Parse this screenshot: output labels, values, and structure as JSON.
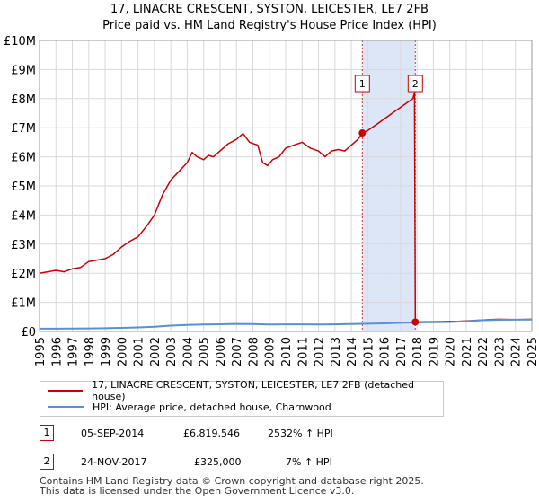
{
  "colors": {
    "price_paid": "#cc0000",
    "hpi": "#5b8fd6",
    "shade": "#dde6f7",
    "grid": "#d9d9d9",
    "axis": "#999999"
  },
  "chart_data": {
    "type": "line",
    "title": "17, LINACRE CRESCENT, SYSTON, LEICESTER, LE7 2FB",
    "subtitle": "Price paid vs. HM Land Registry's House Price Index (HPI)",
    "xlim": [
      1995,
      2025
    ],
    "ylim": [
      0,
      10000000
    ],
    "x_ticks": [
      "1995",
      "1996",
      "1997",
      "1998",
      "1999",
      "2000",
      "2001",
      "2002",
      "2003",
      "2004",
      "2005",
      "2006",
      "2007",
      "2008",
      "2009",
      "2010",
      "2011",
      "2012",
      "2013",
      "2014",
      "2015",
      "2016",
      "2017",
      "2018",
      "2019",
      "2020",
      "2021",
      "2022",
      "2023",
      "2024",
      "2025"
    ],
    "y_ticks": [
      {
        "value": 0,
        "label": "£0"
      },
      {
        "value": 1000000,
        "label": "£1M"
      },
      {
        "value": 2000000,
        "label": "£2M"
      },
      {
        "value": 3000000,
        "label": "£3M"
      },
      {
        "value": 4000000,
        "label": "£4M"
      },
      {
        "value": 5000000,
        "label": "£5M"
      },
      {
        "value": 6000000,
        "label": "£6M"
      },
      {
        "value": 7000000,
        "label": "£7M"
      },
      {
        "value": 8000000,
        "label": "£8M"
      },
      {
        "value": 9000000,
        "label": "£9M"
      },
      {
        "value": 10000000,
        "label": "£10M"
      }
    ],
    "grid": true,
    "shaded_range": [
      2014.67,
      2017.9
    ],
    "series": [
      {
        "name": "17, LINACRE CRESCENT, SYSTON, LEICESTER, LE7 2FB (detached house)",
        "color": "#cc0000",
        "x": [
          1995.0,
          1995.5,
          1996.0,
          1996.5,
          1997.0,
          1997.5,
          1998.0,
          1998.5,
          1999.0,
          1999.5,
          2000.0,
          2000.5,
          2001.0,
          2001.5,
          2002.0,
          2002.5,
          2003.0,
          2003.5,
          2004.0,
          2004.3,
          2004.6,
          2005.0,
          2005.3,
          2005.6,
          2006.0,
          2006.5,
          2007.0,
          2007.4,
          2007.8,
          2008.3,
          2008.6,
          2008.9,
          2009.2,
          2009.6,
          2010.0,
          2010.5,
          2011.0,
          2011.5,
          2012.0,
          2012.4,
          2012.8,
          2013.2,
          2013.6,
          2014.0,
          2014.4,
          2014.67,
          2015.0,
          2015.5,
          2016.0,
          2016.5,
          2017.0,
          2017.5,
          2017.75,
          2017.85,
          2017.9,
          2018.0,
          2018.5,
          2019.0,
          2019.5,
          2020.0,
          2020.5,
          2021.0,
          2021.5,
          2022.0,
          2022.5,
          2023.0,
          2023.5,
          2024.0,
          2024.5,
          2025.0
        ],
        "values": [
          2000000,
          2050000,
          2100000,
          2050000,
          2150000,
          2200000,
          2400000,
          2450000,
          2500000,
          2650000,
          2900000,
          3100000,
          3250000,
          3600000,
          4000000,
          4700000,
          5200000,
          5500000,
          5800000,
          6150000,
          6000000,
          5900000,
          6050000,
          6000000,
          6200000,
          6450000,
          6600000,
          6800000,
          6500000,
          6400000,
          5800000,
          5700000,
          5900000,
          6000000,
          6300000,
          6400000,
          6500000,
          6300000,
          6200000,
          6000000,
          6200000,
          6250000,
          6200000,
          6400000,
          6600000,
          6819546,
          6900000,
          7100000,
          7300000,
          7500000,
          7700000,
          7900000,
          8000000,
          8200000,
          325000,
          325000,
          330000,
          335000,
          340000,
          345000,
          350000,
          365000,
          380000,
          395000,
          410000,
          420000,
          415000,
          410000,
          415000,
          420000
        ]
      },
      {
        "name": "HPI: Average price, detached house, Charnwood",
        "color": "#5b8fd6",
        "x": [
          1995,
          1996,
          1997,
          1998,
          1999,
          2000,
          2001,
          2002,
          2003,
          2004,
          2005,
          2006,
          2007,
          2008,
          2009,
          2010,
          2011,
          2012,
          2013,
          2014,
          2015,
          2016,
          2017,
          2018,
          2019,
          2020,
          2021,
          2022,
          2023,
          2024,
          2025
        ],
        "values": [
          95000,
          96000,
          100000,
          106000,
          112000,
          123000,
          140000,
          165000,
          200000,
          225000,
          238000,
          248000,
          258000,
          255000,
          238000,
          245000,
          243000,
          242000,
          245000,
          255000,
          265000,
          278000,
          295000,
          310000,
          318000,
          325000,
          350000,
          385000,
          400000,
          405000,
          410000
        ]
      }
    ],
    "markers": [
      {
        "label": "1",
        "x": 2014.67,
        "y": 6819546
      },
      {
        "label": "2",
        "x": 2017.9,
        "y": 325000
      }
    ]
  },
  "legend": {
    "price_paid": "17, LINACRE CRESCENT, SYSTON, LEICESTER, LE7 2FB (detached house)",
    "hpi": "HPI: Average price, detached house, Charnwood"
  },
  "transactions": [
    {
      "num": "1",
      "date": "05-SEP-2014",
      "price": "£6,819,546",
      "hpi_change": "2532% ↑ HPI"
    },
    {
      "num": "2",
      "date": "24-NOV-2017",
      "price": "£325,000",
      "hpi_change": "7% ↑ HPI"
    }
  ],
  "footer": {
    "line1": "Contains HM Land Registry data © Crown copyright and database right 2025.",
    "line2": "This data is licensed under the Open Government Licence v3.0."
  }
}
